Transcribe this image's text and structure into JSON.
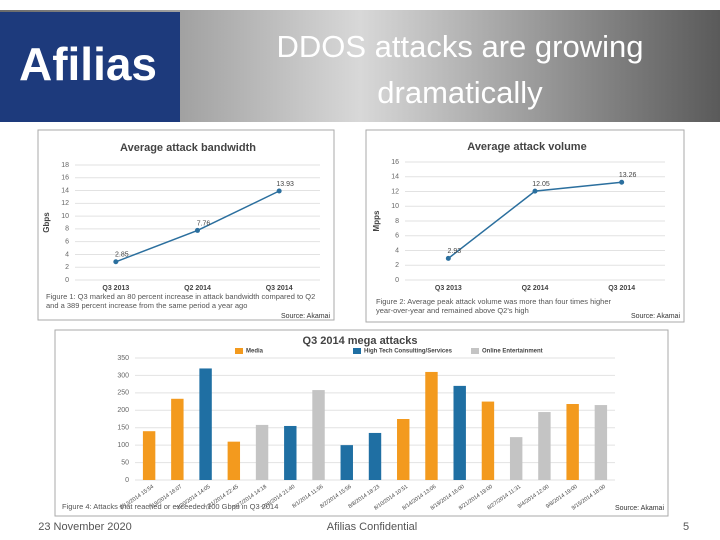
{
  "header": {
    "logo": "Afilias",
    "title": "DDOS attacks are growing dramatically"
  },
  "chart_data": [
    {
      "type": "line",
      "title": "Average attack bandwidth",
      "y_label": "Gbps",
      "categories": [
        "Q3 2013",
        "Q2 2014",
        "Q3 2014"
      ],
      "values": [
        2.85,
        7.76,
        13.93
      ],
      "color": "#2b6f9e",
      "ylim": [
        0,
        18
      ],
      "yticks": [
        0,
        2,
        4,
        6,
        8,
        10,
        12,
        14,
        16,
        18
      ],
      "grid": true,
      "caption": "Figure 1: Q3 marked an 80 percent increase in attack bandwidth compared to Q2 and a 389 percent increase from the same period a year ago",
      "source": "Source: Akamai"
    },
    {
      "type": "line",
      "title": "Average attack volume",
      "y_label": "Mpps",
      "categories": [
        "Q3 2013",
        "Q2 2014",
        "Q3 2014"
      ],
      "values": [
        2.93,
        12.05,
        13.26
      ],
      "color": "#2b6f9e",
      "ylim": [
        0,
        16
      ],
      "yticks": [
        0,
        2,
        4,
        6,
        8,
        10,
        12,
        14,
        16
      ],
      "grid": true,
      "caption": "Figure 2: Average peak attack volume was more than four times higher year-over-year and remained above Q2's high",
      "source": "Source: Akamai"
    },
    {
      "type": "bar",
      "title": "Q3 2014 mega attacks",
      "categories": [
        "7/13/2014 15:54",
        "7/19/2014 16:07",
        "7/20/2014 14:05",
        "7/21/2014 22:45",
        "7/27/2014 14:18",
        "7/28/2014 21:40",
        "8/1/2014 11:56",
        "8/2/2014 15:56",
        "8/8/2014 18:23",
        "8/10/2014 10:51",
        "8/14/2014 13:06",
        "8/19/2014 16:00",
        "8/21/2014 19:00",
        "8/27/2014 11:31",
        "9/4/2014 12:00",
        "9/8/2014 19:00",
        "9/15/2014 18:00"
      ],
      "series": [
        {
          "name": "Media",
          "color": "#f39a1e",
          "values": [
            140,
            233,
            null,
            110,
            null,
            null,
            null,
            null,
            null,
            175,
            310,
            null,
            225,
            null,
            null,
            218,
            null
          ]
        },
        {
          "name": "High Tech Consulting/Services",
          "color": "#1f6fa3",
          "values": [
            null,
            null,
            320,
            null,
            null,
            155,
            null,
            100,
            135,
            null,
            null,
            270,
            null,
            null,
            null,
            null,
            null
          ]
        },
        {
          "name": "Online Entertainment",
          "color": "#c4c4c4",
          "values": [
            null,
            null,
            null,
            null,
            158,
            null,
            258,
            null,
            null,
            null,
            null,
            null,
            null,
            123,
            195,
            null,
            215
          ]
        }
      ],
      "ylim": [
        0,
        350
      ],
      "yticks": [
        0,
        50,
        100,
        150,
        200,
        250,
        300,
        350
      ],
      "grid": true,
      "caption": "Figure 4: Attacks that reached or exceeded 100 Gbps in Q3 2014",
      "source": "Source: Akamai"
    }
  ],
  "footer": {
    "date": "23 November 2020",
    "confidential": "Afilias Confidential",
    "page": "5"
  }
}
